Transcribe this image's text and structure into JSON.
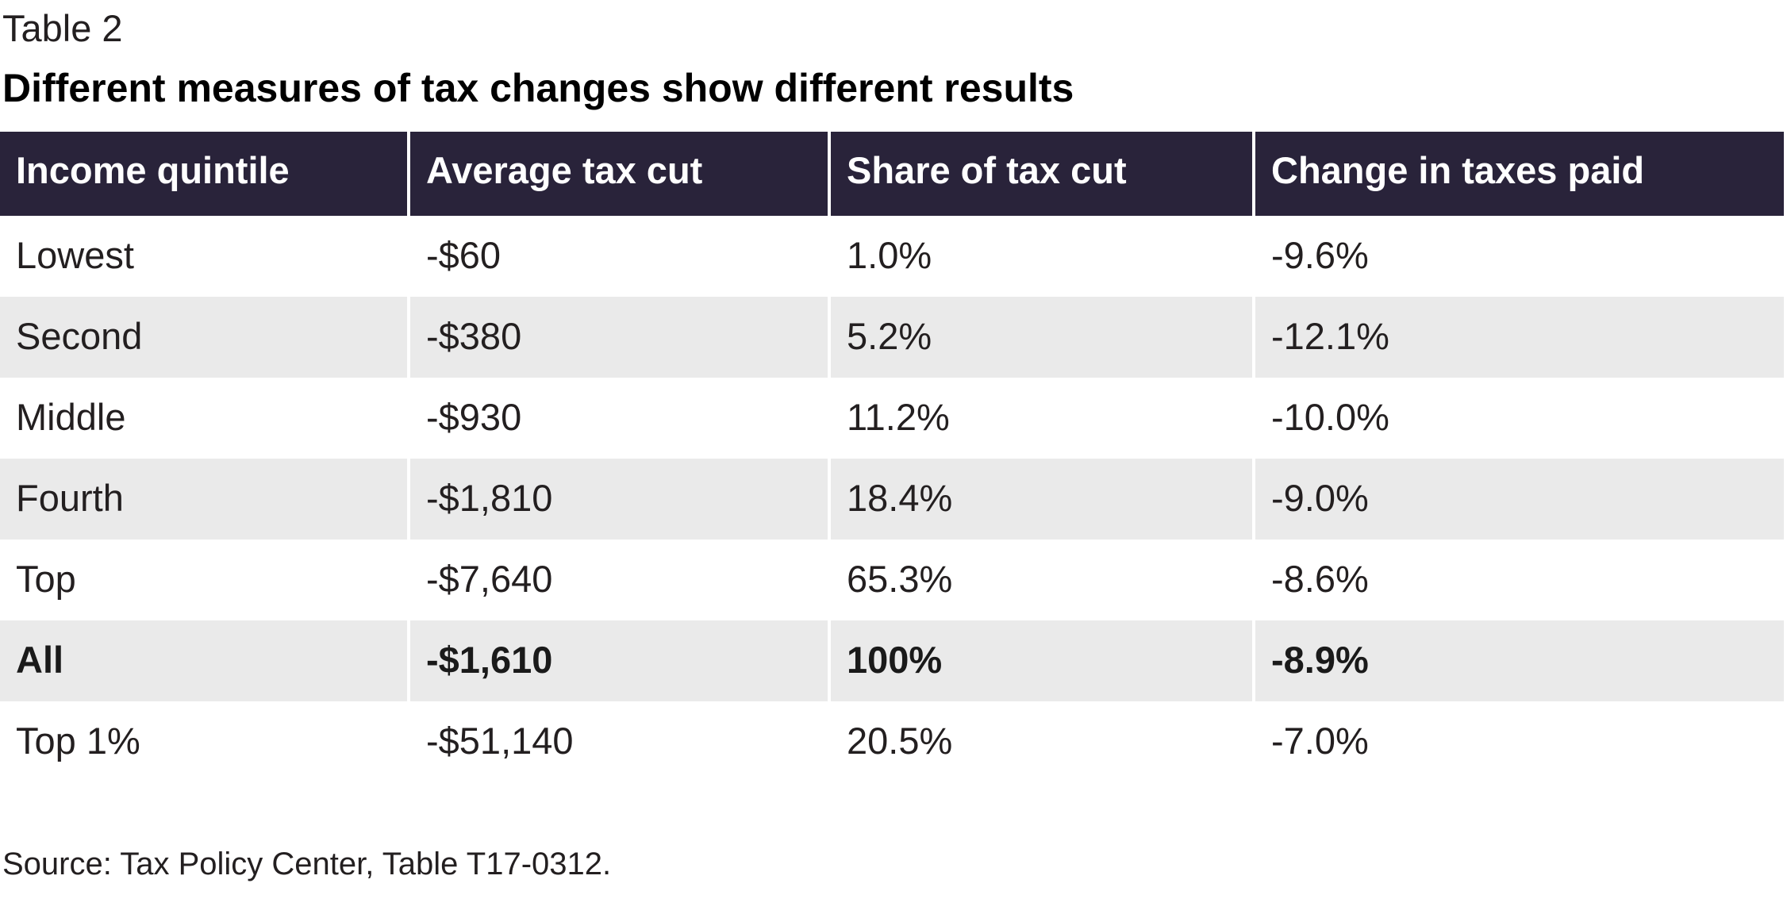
{
  "label": "Table 2",
  "title": "Different measures of tax changes show different results",
  "source": "Source: Tax Policy Center, Table T17-0312.",
  "colors": {
    "header_bg": "#29233a",
    "header_text": "#ffffff",
    "stripe": "#eaeaea",
    "text": "#231f20"
  },
  "chart_data": {
    "type": "table",
    "title": "Different measures of tax changes show different results",
    "columns": [
      "Income quintile",
      "Average tax cut",
      "Share of tax cut",
      "Change in taxes paid"
    ],
    "rows": [
      {
        "quintile": "Lowest",
        "average": "-$60",
        "share": "1.0%",
        "change": "-9.6%"
      },
      {
        "quintile": "Second",
        "average": "-$380",
        "share": "5.2%",
        "change": "-12.1%"
      },
      {
        "quintile": "Middle",
        "average": "-$930",
        "share": "11.2%",
        "change": "-10.0%"
      },
      {
        "quintile": "Fourth",
        "average": "-$1,810",
        "share": "18.4%",
        "change": "-9.0%"
      },
      {
        "quintile": "Top",
        "average": "-$7,640",
        "share": "65.3%",
        "change": "-8.6%"
      },
      {
        "quintile": "All",
        "average": "-$1,610",
        "share": "100%",
        "change": "-8.9%"
      },
      {
        "quintile": "Top 1%",
        "average": "-$51,140",
        "share": "20.5%",
        "change": "-7.0%"
      }
    ]
  }
}
